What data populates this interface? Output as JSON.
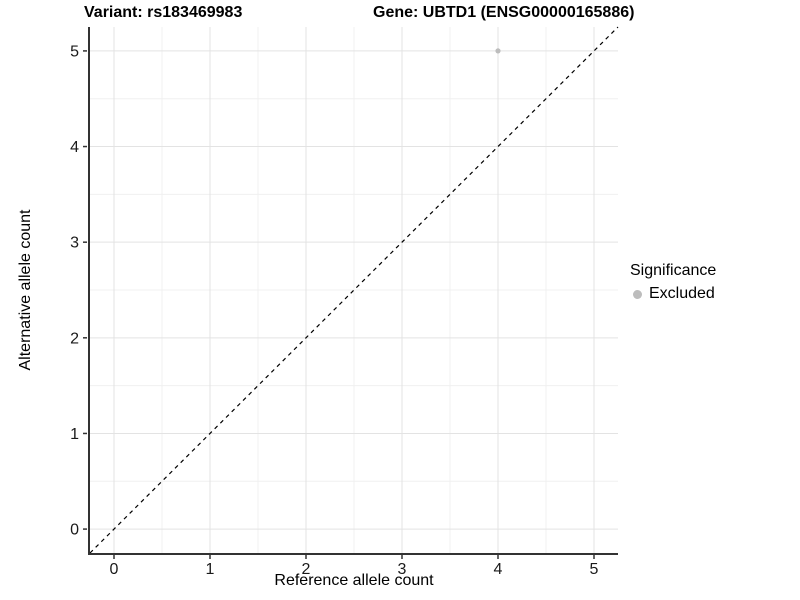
{
  "chart_data": {
    "type": "scatter",
    "title_left": "Variant: rs183469983",
    "title_right": "Gene: UBTD1 (ENSG00000165886)",
    "xlabel": "Reference allele count",
    "ylabel": "Alternative allele count",
    "xlim": [
      -0.25,
      5.25
    ],
    "ylim": [
      -0.25,
      5.25
    ],
    "xticks": [
      0,
      1,
      2,
      3,
      4,
      5
    ],
    "yticks": [
      0,
      1,
      2,
      3,
      4,
      5
    ],
    "grid": "major+minor",
    "legend_position": "right",
    "series": [
      {
        "name": "Excluded",
        "color": "#bdbdbd",
        "points": [
          {
            "x": 4,
            "y": 5
          }
        ]
      }
    ],
    "abline": {
      "slope": 1,
      "intercept": 0,
      "style": "dashed",
      "color": "#000000"
    },
    "colors": {
      "grid_major": "#e3e3e3",
      "grid_minor": "#f0f0f0",
      "axis_line": "#333333",
      "tick_mark": "#333333"
    }
  },
  "legend": {
    "title": "Significance",
    "items": [
      {
        "label": "Excluded"
      }
    ]
  }
}
